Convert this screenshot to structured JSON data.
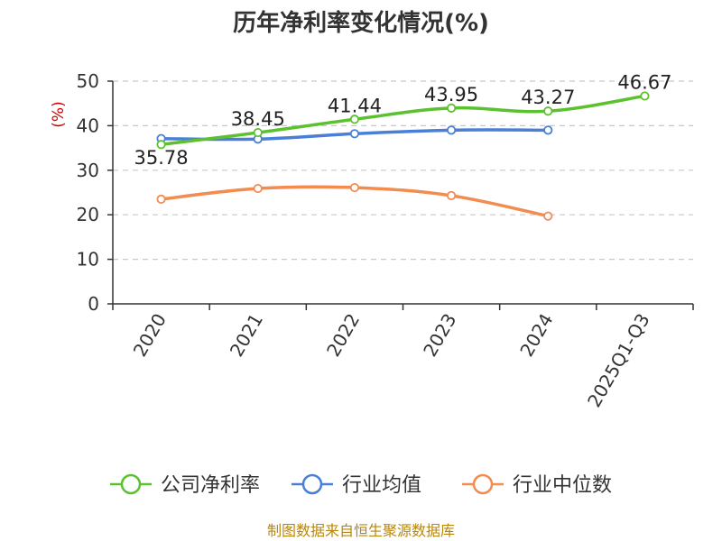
{
  "chart_data": {
    "type": "line",
    "title": "历年净利率变化情况(%)",
    "ylabel": "(%)",
    "xlabel": "",
    "categories": [
      "2020",
      "2021",
      "2022",
      "2023",
      "2024",
      "2025Q1-Q3"
    ],
    "ylim": [
      0,
      50
    ],
    "yticks": [
      0,
      10,
      20,
      30,
      40,
      50
    ],
    "grid": true,
    "legend_position": "bottom",
    "series": [
      {
        "name": "公司净利率",
        "color": "#5cc12f",
        "values": [
          35.78,
          38.45,
          41.44,
          43.95,
          43.27,
          46.67
        ],
        "labels": [
          "35.78",
          "38.45",
          "41.44",
          "43.95",
          "43.27",
          "46.67"
        ]
      },
      {
        "name": "行业均值",
        "color": "#4a7fd8",
        "values": [
          37.1,
          37.0,
          38.2,
          39.0,
          39.0,
          null
        ]
      },
      {
        "name": "行业中位数",
        "color": "#f28c4f",
        "values": [
          23.5,
          25.9,
          26.1,
          24.3,
          19.7,
          null
        ]
      }
    ]
  },
  "source_text": "制图数据来自恒生聚源数据库"
}
